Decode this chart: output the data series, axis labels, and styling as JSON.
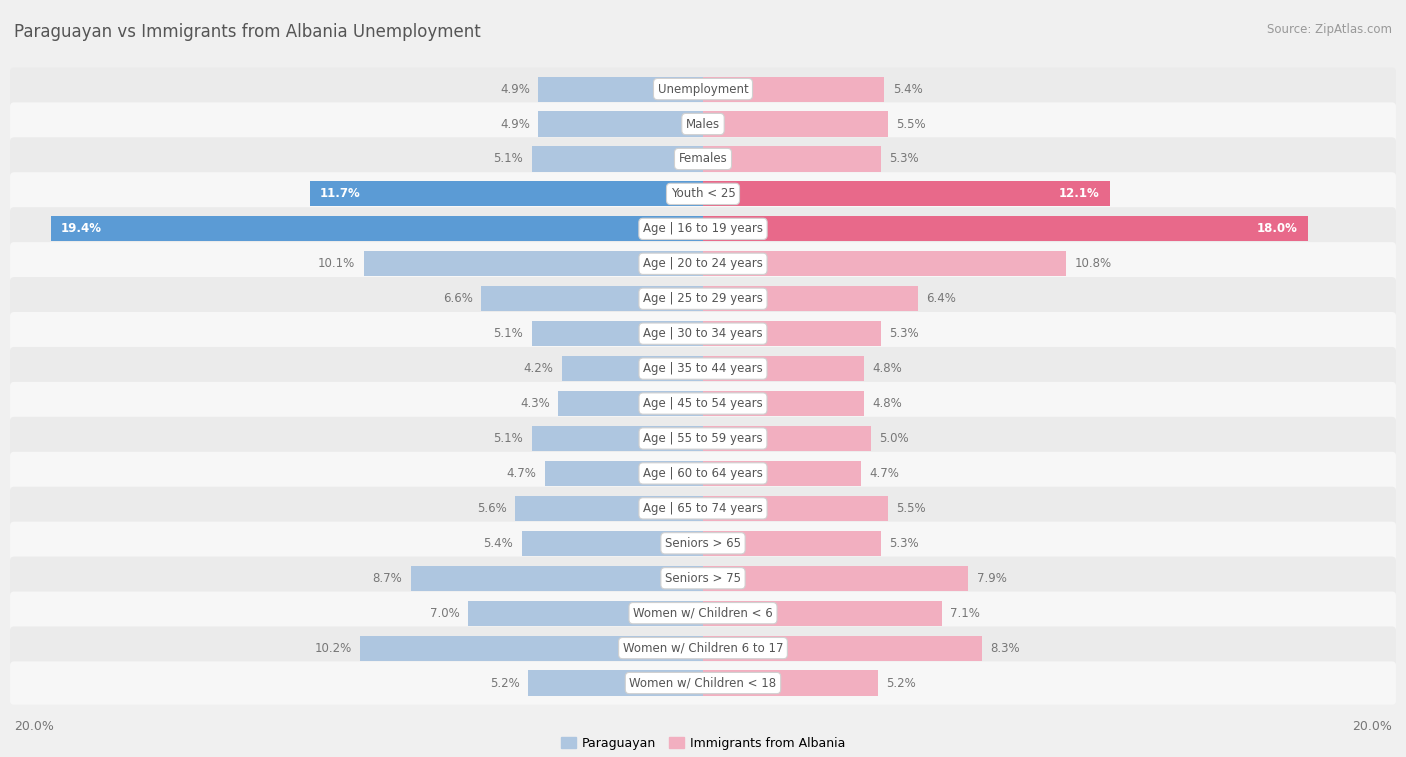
{
  "title": "Paraguayan vs Immigrants from Albania Unemployment",
  "source": "Source: ZipAtlas.com",
  "categories": [
    "Unemployment",
    "Males",
    "Females",
    "Youth < 25",
    "Age | 16 to 19 years",
    "Age | 20 to 24 years",
    "Age | 25 to 29 years",
    "Age | 30 to 34 years",
    "Age | 35 to 44 years",
    "Age | 45 to 54 years",
    "Age | 55 to 59 years",
    "Age | 60 to 64 years",
    "Age | 65 to 74 years",
    "Seniors > 65",
    "Seniors > 75",
    "Women w/ Children < 6",
    "Women w/ Children 6 to 17",
    "Women w/ Children < 18"
  ],
  "paraguayan": [
    4.9,
    4.9,
    5.1,
    11.7,
    19.4,
    10.1,
    6.6,
    5.1,
    4.2,
    4.3,
    5.1,
    4.7,
    5.6,
    5.4,
    8.7,
    7.0,
    10.2,
    5.2
  ],
  "albania": [
    5.4,
    5.5,
    5.3,
    12.1,
    18.0,
    10.8,
    6.4,
    5.3,
    4.8,
    4.8,
    5.0,
    4.7,
    5.5,
    5.3,
    7.9,
    7.1,
    8.3,
    5.2
  ],
  "max_val": 20.0,
  "bar_color_paraguayan": "#aec6e0",
  "bar_color_albania": "#f2afc0",
  "highlight_color_paraguayan": "#5b9bd5",
  "highlight_color_albania": "#e8698a",
  "bg_row_odd": "#ebebeb",
  "bg_row_even": "#f7f7f7",
  "label_color_normal": "#777777",
  "legend_paraguayan": "Paraguayan",
  "legend_albania": "Immigrants from Albania",
  "highlight_indices": [
    3,
    4
  ]
}
